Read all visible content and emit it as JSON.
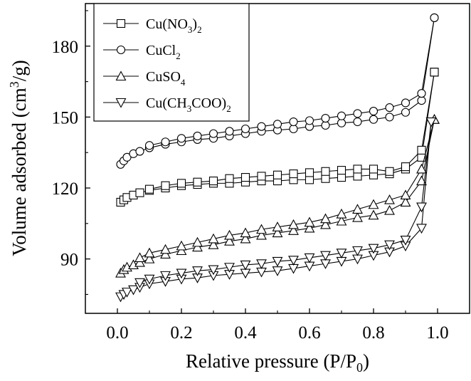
{
  "chart_data": {
    "type": "line",
    "xlabel": "Relative pressure (P/P0)",
    "ylabel": "Volume adsorbed (cm3/g)",
    "xlim": [
      -0.1,
      1.1
    ],
    "ylim": [
      67,
      198
    ],
    "x_ticks": [
      0.0,
      0.2,
      0.4,
      0.6,
      0.8,
      1.0
    ],
    "x_tick_labels": [
      "0.0",
      "0.2",
      "0.4",
      "0.6",
      "0.8",
      "1.0"
    ],
    "y_ticks": [
      90,
      120,
      150,
      180
    ],
    "y_tick_labels": [
      "90",
      "120",
      "150",
      "180"
    ],
    "grid": false,
    "legend_position": "top-left",
    "series": [
      {
        "name": "Cu(NO3)2",
        "marker": "square",
        "adsorption": [
          [
            0.01,
            114
          ],
          [
            0.02,
            115
          ],
          [
            0.03,
            116
          ],
          [
            0.05,
            117
          ],
          [
            0.07,
            118
          ],
          [
            0.1,
            119
          ],
          [
            0.15,
            120
          ],
          [
            0.2,
            121
          ],
          [
            0.25,
            121.5
          ],
          [
            0.3,
            122
          ],
          [
            0.35,
            122
          ],
          [
            0.4,
            122.5
          ],
          [
            0.45,
            123
          ],
          [
            0.5,
            123
          ],
          [
            0.55,
            123.5
          ],
          [
            0.6,
            123.5
          ],
          [
            0.65,
            124
          ],
          [
            0.7,
            124.5
          ],
          [
            0.75,
            125
          ],
          [
            0.8,
            125.5
          ],
          [
            0.85,
            126
          ],
          [
            0.9,
            128
          ],
          [
            0.95,
            133
          ],
          [
            0.99,
            169
          ]
        ],
        "desorption": [
          [
            0.99,
            169
          ],
          [
            0.95,
            136
          ],
          [
            0.9,
            129
          ],
          [
            0.85,
            127
          ],
          [
            0.8,
            128
          ],
          [
            0.75,
            128
          ],
          [
            0.7,
            127.5
          ],
          [
            0.65,
            127
          ],
          [
            0.6,
            126.5
          ],
          [
            0.55,
            126
          ],
          [
            0.5,
            125.5
          ],
          [
            0.45,
            125
          ],
          [
            0.4,
            124.5
          ],
          [
            0.35,
            124
          ],
          [
            0.3,
            123
          ],
          [
            0.25,
            122.5
          ],
          [
            0.2,
            122
          ],
          [
            0.15,
            121
          ],
          [
            0.1,
            119.5
          ]
        ]
      },
      {
        "name": "CuCl2",
        "marker": "circle",
        "adsorption": [
          [
            0.01,
            130
          ],
          [
            0.02,
            131.5
          ],
          [
            0.03,
            133
          ],
          [
            0.05,
            134.5
          ],
          [
            0.07,
            135.5
          ],
          [
            0.1,
            137
          ],
          [
            0.15,
            138.5
          ],
          [
            0.2,
            139.5
          ],
          [
            0.25,
            140.5
          ],
          [
            0.3,
            141
          ],
          [
            0.35,
            142
          ],
          [
            0.4,
            143
          ],
          [
            0.45,
            144
          ],
          [
            0.5,
            144.5
          ],
          [
            0.55,
            145
          ],
          [
            0.6,
            146
          ],
          [
            0.65,
            146.5
          ],
          [
            0.7,
            147.5
          ],
          [
            0.75,
            148
          ],
          [
            0.8,
            149
          ],
          [
            0.85,
            150
          ],
          [
            0.9,
            152
          ],
          [
            0.95,
            157
          ],
          [
            0.99,
            192
          ]
        ],
        "desorption": [
          [
            0.99,
            192
          ],
          [
            0.95,
            160
          ],
          [
            0.9,
            156
          ],
          [
            0.85,
            154
          ],
          [
            0.8,
            152.5
          ],
          [
            0.75,
            151.5
          ],
          [
            0.7,
            150.5
          ],
          [
            0.65,
            149.5
          ],
          [
            0.6,
            148.5
          ],
          [
            0.55,
            148
          ],
          [
            0.5,
            147
          ],
          [
            0.45,
            146
          ],
          [
            0.4,
            145
          ],
          [
            0.35,
            144
          ],
          [
            0.3,
            143
          ],
          [
            0.25,
            142
          ],
          [
            0.2,
            141
          ],
          [
            0.15,
            139.5
          ],
          [
            0.1,
            138
          ]
        ]
      },
      {
        "name": "CuSO4",
        "marker": "triangle-up",
        "adsorption": [
          [
            0.01,
            84
          ],
          [
            0.02,
            85.5
          ],
          [
            0.03,
            86.5
          ],
          [
            0.05,
            87.5
          ],
          [
            0.07,
            88.5
          ],
          [
            0.1,
            90
          ],
          [
            0.15,
            92
          ],
          [
            0.2,
            93.5
          ],
          [
            0.25,
            95
          ],
          [
            0.3,
            96
          ],
          [
            0.35,
            97.5
          ],
          [
            0.4,
            98.5
          ],
          [
            0.45,
            100
          ],
          [
            0.5,
            101
          ],
          [
            0.55,
            102
          ],
          [
            0.6,
            103
          ],
          [
            0.65,
            104.5
          ],
          [
            0.7,
            106
          ],
          [
            0.75,
            107.5
          ],
          [
            0.8,
            108.5
          ],
          [
            0.85,
            110.5
          ],
          [
            0.9,
            114
          ],
          [
            0.95,
            123
          ],
          [
            0.99,
            149
          ]
        ],
        "desorption": [
          [
            0.99,
            149
          ],
          [
            0.95,
            128
          ],
          [
            0.9,
            117
          ],
          [
            0.85,
            115
          ],
          [
            0.8,
            113
          ],
          [
            0.75,
            111
          ],
          [
            0.7,
            109
          ],
          [
            0.65,
            107
          ],
          [
            0.6,
            105.5
          ],
          [
            0.55,
            104.5
          ],
          [
            0.5,
            103.5
          ],
          [
            0.45,
            102.5
          ],
          [
            0.4,
            101
          ],
          [
            0.35,
            100
          ],
          [
            0.3,
            98.5
          ],
          [
            0.25,
            97
          ],
          [
            0.2,
            95.5
          ],
          [
            0.15,
            94
          ],
          [
            0.1,
            92.5
          ],
          [
            0.07,
            90.5
          ]
        ]
      },
      {
        "name": "Cu(CH3COO)2",
        "marker": "triangle-down",
        "adsorption": [
          [
            0.01,
            74
          ],
          [
            0.02,
            75
          ],
          [
            0.03,
            76
          ],
          [
            0.05,
            77
          ],
          [
            0.07,
            78
          ],
          [
            0.1,
            79.5
          ],
          [
            0.15,
            80.5
          ],
          [
            0.2,
            81.5
          ],
          [
            0.25,
            82
          ],
          [
            0.3,
            83
          ],
          [
            0.35,
            83.5
          ],
          [
            0.4,
            84
          ],
          [
            0.45,
            84.5
          ],
          [
            0.5,
            85
          ],
          [
            0.55,
            86
          ],
          [
            0.6,
            87
          ],
          [
            0.65,
            88
          ],
          [
            0.7,
            89
          ],
          [
            0.75,
            90
          ],
          [
            0.8,
            91.5
          ],
          [
            0.85,
            93
          ],
          [
            0.9,
            95.5
          ],
          [
            0.95,
            103
          ],
          [
            0.98,
            148
          ]
        ],
        "desorption": [
          [
            0.98,
            148
          ],
          [
            0.95,
            112
          ],
          [
            0.9,
            98
          ],
          [
            0.85,
            96
          ],
          [
            0.8,
            94.5
          ],
          [
            0.75,
            93.5
          ],
          [
            0.7,
            92.5
          ],
          [
            0.65,
            91.5
          ],
          [
            0.6,
            90.5
          ],
          [
            0.55,
            89.5
          ],
          [
            0.5,
            89
          ],
          [
            0.45,
            88
          ],
          [
            0.4,
            87.5
          ],
          [
            0.35,
            86.5
          ],
          [
            0.3,
            85.5
          ],
          [
            0.25,
            85
          ],
          [
            0.2,
            84
          ],
          [
            0.15,
            83
          ],
          [
            0.1,
            81.5
          ],
          [
            0.07,
            80
          ]
        ]
      }
    ]
  }
}
